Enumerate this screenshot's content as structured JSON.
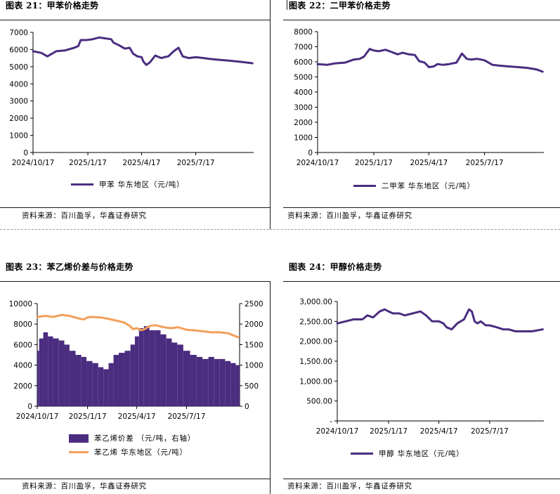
{
  "colors": {
    "purple": "#4b2d80",
    "orange": "#f2a05a",
    "axis": "#000000"
  },
  "panels": [
    {
      "title": "图表 21：甲苯价格走势",
      "source": "资料来源：百川盈孚，华鑫证券研究",
      "legend": "甲苯 华东地区（元/吨）"
    },
    {
      "title": "图表 22：二甲苯价格走势",
      "source": "资料来源：百川盈孚，华鑫证券研究",
      "legend": "二甲苯 华东地区（元/吨）"
    },
    {
      "title": "图表 23：苯乙烯价差与价格走势",
      "source": "资料来源：百川盈孚，华鑫证券研究",
      "legend": "苯乙烯价差 （元/吨，右轴）",
      "legend2": "苯乙烯 华东地区（元/吨）"
    },
    {
      "title": "图表 24：甲醇价格走势",
      "source": "资料来源：百川盈孚，华鑫证券研究",
      "legend": "甲醇 华东地区（元/吨）"
    }
  ],
  "chart_data": [
    {
      "type": "line",
      "title": "图表 21：甲苯价格走势",
      "x_ticks": [
        "2024/10/17",
        "2025/1/17",
        "2025/4/17",
        "2025/7/17"
      ],
      "y_ticks": [
        "0",
        "1000",
        "2000",
        "3000",
        "4000",
        "5000",
        "6000",
        "7000"
      ],
      "ylim": [
        0,
        7000
      ],
      "grid": false,
      "series": [
        {
          "name": "甲苯 华东地区（元/吨）",
          "color": "#4b2d80",
          "x": [
            "2024/10/17",
            "2024/10/31",
            "2024/11/10",
            "2024/11/25",
            "2024/12/10",
            "2024/12/25",
            "2025/1/1",
            "2025/1/5",
            "2025/1/15",
            "2025/1/25",
            "2025/2/5",
            "2025/2/15",
            "2025/2/25",
            "2025/3/1",
            "2025/3/10",
            "2025/3/20",
            "2025/3/28",
            "2025/4/3",
            "2025/4/10",
            "2025/4/17",
            "2025/4/20",
            "2025/4/25",
            "2025/5/1",
            "2025/5/10",
            "2025/5/20",
            "2025/5/25",
            "2025/6/1",
            "2025/6/10",
            "2025/6/18",
            "2025/6/25",
            "2025/7/5",
            "2025/7/17",
            "2025/7/30",
            "2025/8/10",
            "2025/8/25",
            "2025/9/10",
            "2025/9/25",
            "2025/10/8",
            "2025/10/20"
          ],
          "y": [
            5900,
            5800,
            5600,
            5900,
            5950,
            6100,
            6200,
            6550,
            6550,
            6600,
            6700,
            6650,
            6600,
            6400,
            6250,
            6050,
            6100,
            5750,
            5600,
            5550,
            5300,
            5100,
            5250,
            5650,
            5500,
            5550,
            5600,
            5900,
            6100,
            5600,
            5500,
            5550,
            5500,
            5450,
            5400,
            5350,
            5300,
            5250,
            5200
          ]
        }
      ]
    },
    {
      "type": "line",
      "title": "图表 22：二甲苯价格走势",
      "x_ticks": [
        "2024/10/17",
        "2025/1/17",
        "2025/4/17",
        "2025/7/17"
      ],
      "y_ticks": [
        "0",
        "1000",
        "2000",
        "3000",
        "4000",
        "5000",
        "6000",
        "7000",
        "8000"
      ],
      "ylim": [
        0,
        8000
      ],
      "grid": false,
      "series": [
        {
          "name": "二甲苯 华东地区（元/吨）",
          "color": "#4b2d80",
          "x": [
            "2024/10/17",
            "2024/11/1",
            "2024/11/15",
            "2024/12/1",
            "2024/12/15",
            "2024/12/25",
            "2025/1/1",
            "2025/1/10",
            "2025/1/17",
            "2025/1/25",
            "2025/2/5",
            "2025/2/15",
            "2025/2/25",
            "2025/3/5",
            "2025/3/15",
            "2025/3/25",
            "2025/4/1",
            "2025/4/10",
            "2025/4/17",
            "2025/4/25",
            "2025/5/1",
            "2025/5/10",
            "2025/5/20",
            "2025/6/1",
            "2025/6/10",
            "2025/6/18",
            "2025/6/25",
            "2025/7/5",
            "2025/7/17",
            "2025/7/30",
            "2025/8/10",
            "2025/8/25",
            "2025/9/10",
            "2025/9/25",
            "2025/10/10",
            "2025/10/20"
          ],
          "y": [
            5850,
            5800,
            5900,
            5950,
            6150,
            6200,
            6350,
            6850,
            6750,
            6700,
            6800,
            6650,
            6500,
            6600,
            6500,
            6450,
            6050,
            5950,
            5650,
            5700,
            5850,
            5800,
            5850,
            5950,
            6550,
            6200,
            6150,
            6200,
            6100,
            5800,
            5750,
            5700,
            5650,
            5600,
            5500,
            5350
          ]
        }
      ]
    },
    {
      "type": "bar",
      "title": "图表 23：苯乙烯价差与价格走势",
      "x_ticks": [
        "2024/10/17",
        "2025/1/17",
        "2025/4/17",
        "2025/7/17"
      ],
      "y_ticks": [
        "0",
        "2000",
        "4000",
        "6000",
        "8000",
        "10000"
      ],
      "y2_ticks": [
        "0",
        "500",
        "1000",
        "1500",
        "2000",
        "2500"
      ],
      "ylim": [
        0,
        10000
      ],
      "y2lim": [
        0,
        2500
      ],
      "grid": false,
      "series": [
        {
          "name": "苯乙烯价差 （元/吨，右轴）",
          "type": "bar",
          "axis": "right",
          "color": "#4b2d80",
          "x": [
            "2024/10/17",
            "2024/10/24",
            "2024/11/1",
            "2024/11/10",
            "2024/11/20",
            "2024/12/1",
            "2024/12/10",
            "2024/12/20",
            "2025/1/1",
            "2025/1/10",
            "2025/1/20",
            "2025/2/1",
            "2025/2/10",
            "2025/2/20",
            "2025/3/1",
            "2025/3/10",
            "2025/3/20",
            "2025/4/1",
            "2025/4/10",
            "2025/4/17",
            "2025/4/25",
            "2025/5/5",
            "2025/5/15",
            "2025/5/25",
            "2025/6/5",
            "2025/6/15",
            "2025/6/25",
            "2025/7/5",
            "2025/7/17",
            "2025/7/30",
            "2025/8/10",
            "2025/8/20",
            "2025/9/1",
            "2025/9/10",
            "2025/9/20",
            "2025/10/1",
            "2025/10/10",
            "2025/10/20"
          ],
          "y": [
            1350,
            1650,
            1800,
            1700,
            1650,
            1600,
            1500,
            1350,
            1250,
            1200,
            1100,
            1050,
            950,
            900,
            1050,
            1250,
            1300,
            1350,
            1500,
            1700,
            1900,
            1950,
            1850,
            1850,
            1750,
            1650,
            1550,
            1500,
            1350,
            1250,
            1200,
            1150,
            1200,
            1150,
            1150,
            1100,
            1050,
            1000
          ]
        },
        {
          "name": "苯乙烯 华东地区（元/吨）",
          "type": "line",
          "axis": "left",
          "color": "#f2a05a",
          "x": [
            "2024/10/17",
            "2024/11/1",
            "2024/11/15",
            "2024/12/1",
            "2024/12/15",
            "2025/1/1",
            "2025/1/10",
            "2025/1/17",
            "2025/1/25",
            "2025/2/10",
            "2025/2/25",
            "2025/3/10",
            "2025/3/25",
            "2025/4/5",
            "2025/4/10",
            "2025/4/17",
            "2025/4/25",
            "2025/5/1",
            "2025/5/10",
            "2025/5/20",
            "2025/6/1",
            "2025/6/10",
            "2025/6/20",
            "2025/7/1",
            "2025/7/17",
            "2025/7/30",
            "2025/8/15",
            "2025/9/1",
            "2025/9/15",
            "2025/10/1",
            "2025/10/20"
          ],
          "y": [
            8700,
            8800,
            8700,
            8900,
            8800,
            8550,
            8450,
            8650,
            8700,
            8650,
            8500,
            8350,
            8150,
            7800,
            7500,
            7600,
            7400,
            7500,
            7800,
            7900,
            7750,
            7650,
            7600,
            7700,
            7450,
            7400,
            7300,
            7200,
            7200,
            7100,
            6700
          ]
        }
      ]
    },
    {
      "type": "line",
      "title": "图表 24：甲醇价格走势",
      "x_ticks": [
        "2024/10/17",
        "2025/1/17",
        "2025/4/17",
        "2025/7/17"
      ],
      "y_ticks": [
        "-",
        "500.00",
        "1,000.00",
        "1,500.00",
        "2,000.00",
        "2,500.00",
        "3,000.00"
      ],
      "ylim": [
        0,
        3000
      ],
      "grid": false,
      "series": [
        {
          "name": "甲醇 华东地区（元/吨）",
          "color": "#4b2d80",
          "x": [
            "2024/10/17",
            "2024/11/1",
            "2024/11/15",
            "2024/12/1",
            "2024/12/10",
            "2024/12/20",
            "2025/1/1",
            "2025/1/10",
            "2025/1/17",
            "2025/1/25",
            "2025/2/5",
            "2025/2/15",
            "2025/3/1",
            "2025/3/15",
            "2025/3/25",
            "2025/4/5",
            "2025/4/17",
            "2025/4/25",
            "2025/5/1",
            "2025/5/10",
            "2025/5/20",
            "2025/6/1",
            "2025/6/10",
            "2025/6/15",
            "2025/6/20",
            "2025/6/25",
            "2025/7/1",
            "2025/7/10",
            "2025/7/17",
            "2025/7/30",
            "2025/8/10",
            "2025/8/20",
            "2025/9/1",
            "2025/9/15",
            "2025/10/1",
            "2025/10/20"
          ],
          "y": [
            2450,
            2500,
            2550,
            2550,
            2650,
            2600,
            2750,
            2800,
            2750,
            2700,
            2700,
            2650,
            2700,
            2750,
            2650,
            2500,
            2500,
            2450,
            2350,
            2300,
            2450,
            2550,
            2800,
            2750,
            2500,
            2450,
            2500,
            2400,
            2400,
            2350,
            2300,
            2300,
            2250,
            2250,
            2250,
            2300
          ]
        }
      ]
    }
  ]
}
